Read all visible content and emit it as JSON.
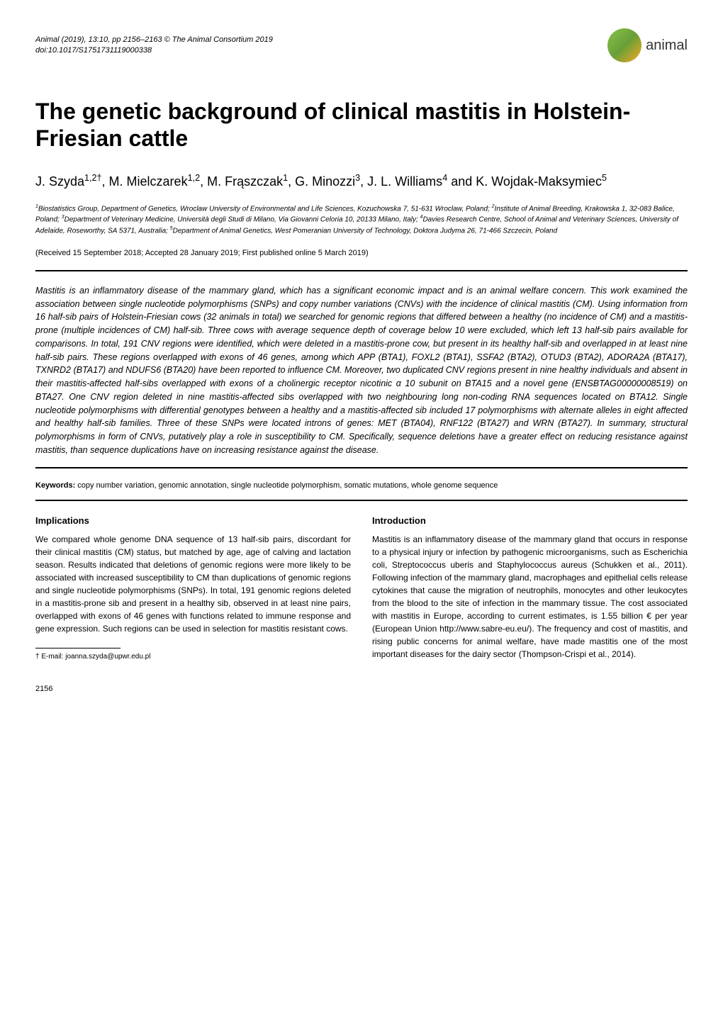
{
  "header": {
    "journal_line": "Animal (2019), 13:10, pp 2156–2163 © The Animal Consortium 2019",
    "doi_line": "doi:10.1017/S1751731119000338",
    "logo_text": "animal"
  },
  "title": "The genetic background of clinical mastitis in Holstein-Friesian cattle",
  "authors_html": "J. Szyda<sup>1,2†</sup>, M. Mielczarek<sup>1,2</sup>, M. Frąszczak<sup>1</sup>, G. Minozzi<sup>3</sup>, J. L. Williams<sup>4</sup> and K. Wojdak-Maksymiec<sup>5</sup>",
  "affiliations_html": "<sup>1</sup>Biostatistics Group, Department of Genetics, Wroclaw University of Environmental and Life Sciences, Kozuchowska 7, 51-631 Wroclaw, Poland; <sup>2</sup>Institute of Animal Breeding, Krakowska 1, 32-083 Balice, Poland; <sup>3</sup>Department of Veterinary Medicine, Università degli Studi di Milano, Via Giovanni Celoria 10, 20133 Milano, Italy; <sup>4</sup>Davies Research Centre, School of Animal and Veterinary Sciences, University of Adelaide, Roseworthy, SA 5371, Australia; <sup>5</sup>Department of Animal Genetics, West Pomeranian University of Technology, Doktora Judyma 26, 71-466 Szczecin, Poland",
  "dates": "(Received 15 September 2018; Accepted 28 January 2019; First published online 5 March 2019)",
  "abstract": "Mastitis is an inflammatory disease of the mammary gland, which has a significant economic impact and is an animal welfare concern. This work examined the association between single nucleotide polymorphisms (SNPs) and copy number variations (CNVs) with the incidence of clinical mastitis (CM). Using information from 16 half-sib pairs of Holstein-Friesian cows (32 animals in total) we searched for genomic regions that differed between a healthy (no incidence of CM) and a mastitis-prone (multiple incidences of CM) half-sib. Three cows with average sequence depth of coverage below 10 were excluded, which left 13 half-sib pairs available for comparisons. In total, 191 CNV regions were identified, which were deleted in a mastitis-prone cow, but present in its healthy half-sib and overlapped in at least nine half-sib pairs. These regions overlapped with exons of 46 genes, among which APP (BTA1), FOXL2 (BTA1), SSFA2 (BTA2), OTUD3 (BTA2), ADORA2A (BTA17), TXNRD2 (BTA17) and NDUFS6 (BTA20) have been reported to influence CM. Moreover, two duplicated CNV regions present in nine healthy individuals and absent in their mastitis-affected half-sibs overlapped with exons of a cholinergic receptor nicotinic α 10 subunit on BTA15 and a novel gene (ENSBTAG00000008519) on BTA27. One CNV region deleted in nine mastitis-affected sibs overlapped with two neighbouring long non-coding RNA sequences located on BTA12. Single nucleotide polymorphisms with differential genotypes between a healthy and a mastitis-affected sib included 17 polymorphisms with alternate alleles in eight affected and healthy half-sib families. Three of these SNPs were located introns of genes: MET (BTA04), RNF122 (BTA27) and WRN (BTA27). In summary, structural polymorphisms in form of CNVs, putatively play a role in susceptibility to CM. Specifically, sequence deletions have a greater effect on reducing resistance against mastitis, than sequence duplications have on increasing resistance against the disease.",
  "keywords_label": "Keywords:",
  "keywords_text": " copy number variation, genomic annotation, single nucleotide polymorphism, somatic mutations, whole genome sequence",
  "sections": {
    "implications": {
      "heading": "Implications",
      "body": "We compared whole genome DNA sequence of 13 half-sib pairs, discordant for their clinical mastitis (CM) status, but matched by age, age of calving and lactation season. Results indicated that deletions of genomic regions were more likely to be associated with increased susceptibility to CM than duplications of genomic regions and single nucleotide polymorphisms (SNPs). In total, 191 genomic regions deleted in a mastitis-prone sib and present in a healthy sib, observed in at least nine pairs, overlapped with exons of 46 genes with functions related to immune response and gene expression. Such regions can be used in selection for mastitis resistant cows."
    },
    "introduction": {
      "heading": "Introduction",
      "body": "Mastitis is an inflammatory disease of the mammary gland that occurs in response to a physical injury or infection by pathogenic microorganisms, such as Escherichia coli, Streptococcus uberis and Staphylococcus aureus (Schukken et al., 2011). Following infection of the mammary gland, macrophages and epithelial cells release cytokines that cause the migration of neutrophils, monocytes and other leukocytes from the blood to the site of infection in the mammary tissue. The cost associated with mastitis in Europe, according to current estimates, is 1.55 billion € per year (European Union http://www.sabre-eu.eu/). The frequency and cost of mastitis, and rising public concerns for animal welfare, have made mastitis one of the most important diseases for the dairy sector (Thompson-Crispi et al., 2014)."
    }
  },
  "footnote": "† E-mail: joanna.szyda@upwr.edu.pl",
  "page_number": "2156",
  "colors": {
    "text": "#000000",
    "background": "#ffffff",
    "logo_green": "#8bc34a",
    "logo_dark_green": "#689f38",
    "logo_yellow": "#f9a825"
  }
}
